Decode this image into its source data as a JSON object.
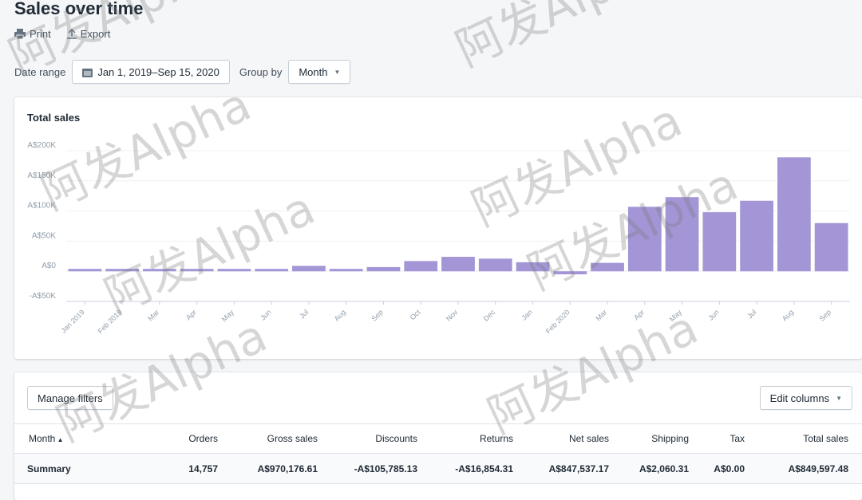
{
  "header": {
    "title": "Sales over time",
    "print_label": "Print",
    "export_label": "Export"
  },
  "filters": {
    "date_range_label": "Date range",
    "date_range_value": "Jan 1, 2019–Sep 15, 2020",
    "group_by_label": "Group by",
    "group_by_value": "Month"
  },
  "chart_data": {
    "type": "bar",
    "title": "Total sales",
    "categories": [
      "Jan 2019",
      "Feb 2019",
      "Mar",
      "Apr",
      "May",
      "Jun",
      "Jul",
      "Aug",
      "Sep",
      "Oct",
      "Nov",
      "Dec",
      "Jan",
      "Feb 2020",
      "Mar",
      "Apr",
      "May",
      "Jun",
      "Jul",
      "Aug",
      "Sep"
    ],
    "values": [
      4000,
      4000,
      4000,
      4000,
      4000,
      4000,
      9000,
      4000,
      7000,
      17000,
      24000,
      21000,
      15000,
      -5000,
      14000,
      107000,
      123000,
      98000,
      117000,
      189000,
      80000
    ],
    "yticks": [
      "A$200K",
      "A$150K",
      "A$100K",
      "A$50K",
      "A$0",
      "-A$50K"
    ],
    "ylim": [
      -50000,
      200000
    ],
    "grid": true,
    "color": "#a495d6"
  },
  "table": {
    "manage_filters": "Manage filters",
    "edit_columns": "Edit columns",
    "columns": [
      "Month",
      "Orders",
      "Gross sales",
      "Discounts",
      "Returns",
      "Net sales",
      "Shipping",
      "Tax",
      "Total sales"
    ],
    "summary": [
      "Summary",
      "14,757",
      "A$970,176.61",
      "-A$105,785.13",
      "-A$16,854.31",
      "A$847,537.17",
      "A$2,060.31",
      "A$0.00",
      "A$849,597.48"
    ]
  },
  "watermark": "阿发Alpha"
}
